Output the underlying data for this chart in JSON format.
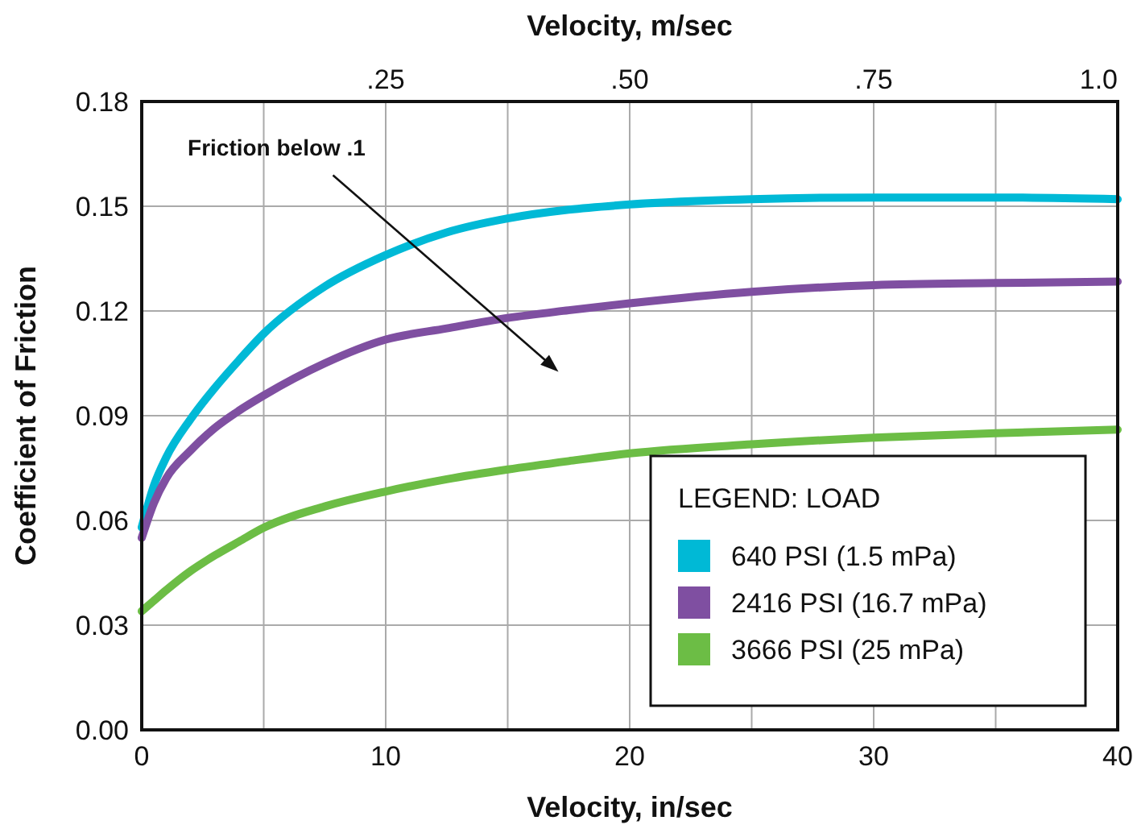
{
  "chart_data": {
    "type": "line",
    "xlabel": "Velocity, in/sec",
    "x2label": "Velocity, m/sec",
    "ylabel": "Coefficient of Friction",
    "legend_title": "LEGEND: LOAD",
    "x": [
      0,
      0.5,
      1,
      2,
      3,
      4,
      5,
      7.5,
      10,
      12.5,
      15,
      17.5,
      20,
      25,
      30,
      35,
      40
    ],
    "series": [
      {
        "name": "640 PSI (1.5 mPa)",
        "color": "#00b9d6",
        "values": [
          0.058,
          0.07,
          0.078,
          0.089,
          0.098,
          0.106,
          0.1135,
          0.127,
          0.136,
          0.1425,
          0.1465,
          0.149,
          0.1505,
          0.152,
          0.1525,
          0.1525,
          0.152
        ]
      },
      {
        "name": "2416 PSI (16.7 mPa)",
        "color": "#7f4fa1",
        "values": [
          0.055,
          0.065,
          0.072,
          0.08,
          0.0865,
          0.0915,
          0.0958,
          0.105,
          0.1118,
          0.115,
          0.118,
          0.1202,
          0.1222,
          0.1255,
          0.1274,
          0.128,
          0.1284
        ]
      },
      {
        "name": "3666 PSI (25 mPa)",
        "color": "#6cbd45",
        "values": [
          0.034,
          0.037,
          0.04,
          0.0455,
          0.05,
          0.054,
          0.0579,
          0.064,
          0.0683,
          0.0718,
          0.0746,
          0.077,
          0.0792,
          0.0818,
          0.0837,
          0.085,
          0.086
        ]
      }
    ],
    "xlim": [
      0,
      40
    ],
    "xticks": [
      0,
      10,
      20,
      30,
      40
    ],
    "x2lim": [
      0,
      1.0
    ],
    "x2ticks": [
      {
        "value": 0.25,
        "label": ".25"
      },
      {
        "value": 0.5,
        "label": ".50"
      },
      {
        "value": 0.75,
        "label": ".75"
      },
      {
        "value": 1.0,
        "label": "1.0"
      }
    ],
    "ylim": [
      0,
      0.18
    ],
    "yticks": [
      {
        "value": 0,
        "label": "0.00"
      },
      {
        "value": 0.03,
        "label": "0.03"
      },
      {
        "value": 0.06,
        "label": "0.06"
      },
      {
        "value": 0.09,
        "label": "0.09"
      },
      {
        "value": 0.12,
        "label": "0.12"
      },
      {
        "value": 0.15,
        "label": "0.15"
      },
      {
        "value": 0.18,
        "label": "0.18"
      }
    ],
    "grid": true,
    "legend": "bottom right",
    "marker": "none",
    "line_style": "solid",
    "annotations": [
      "Friction below .1"
    ]
  }
}
